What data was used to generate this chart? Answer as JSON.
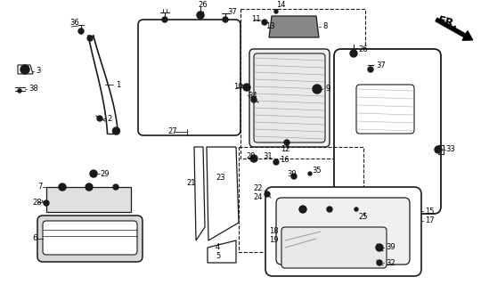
{
  "bg_color": "#ffffff",
  "line_color": "#1a1a1a",
  "fig_width": 5.4,
  "fig_height": 3.2,
  "dpi": 100
}
